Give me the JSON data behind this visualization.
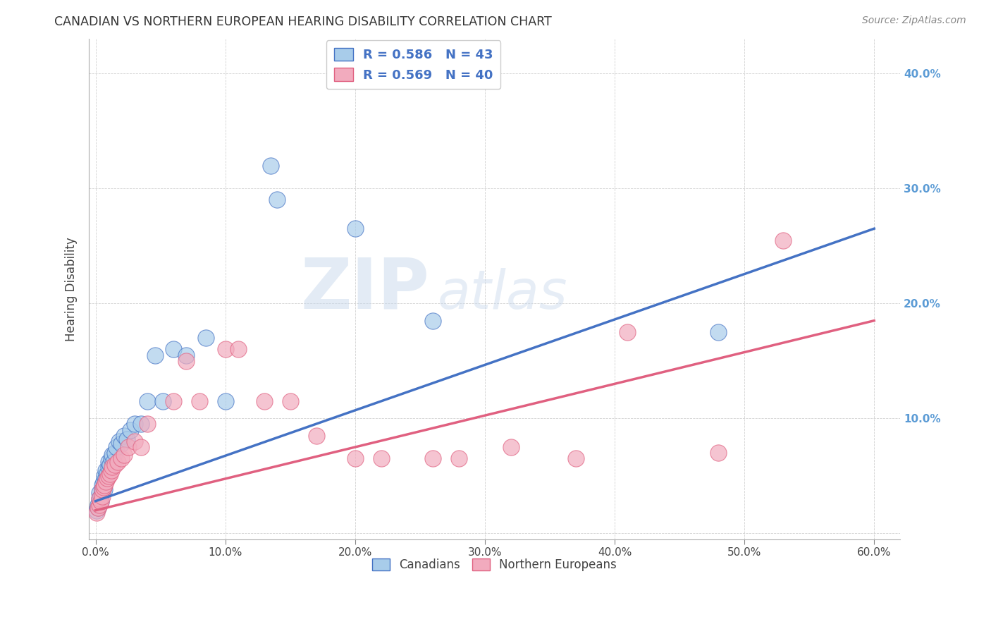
{
  "title": "CANADIAN VS NORTHERN EUROPEAN HEARING DISABILITY CORRELATION CHART",
  "source": "Source: ZipAtlas.com",
  "ylabel": "Hearing Disability",
  "xlim": [
    -0.005,
    0.62
  ],
  "ylim": [
    -0.005,
    0.43
  ],
  "xticks": [
    0.0,
    0.1,
    0.2,
    0.3,
    0.4,
    0.5,
    0.6
  ],
  "yticks": [
    0.0,
    0.1,
    0.2,
    0.3,
    0.4
  ],
  "canadian_R": 0.586,
  "canadian_N": 43,
  "northern_european_R": 0.569,
  "northern_european_N": 40,
  "legend_labels": [
    "Canadians",
    "Northern Europeans"
  ],
  "canadian_color": "#A8CCEA",
  "northern_european_color": "#F2ABBE",
  "canadian_line_color": "#4472C4",
  "northern_european_line_color": "#E06080",
  "background_color": "#FFFFFF",
  "watermark_color": "#C8D8EC",
  "right_tick_color": "#5B9BD5",
  "canadian_x": [
    0.001,
    0.002,
    0.002,
    0.003,
    0.003,
    0.004,
    0.004,
    0.005,
    0.005,
    0.006,
    0.006,
    0.007,
    0.007,
    0.008,
    0.008,
    0.009,
    0.01,
    0.01,
    0.011,
    0.012,
    0.013,
    0.014,
    0.015,
    0.016,
    0.018,
    0.02,
    0.022,
    0.024,
    0.027,
    0.03,
    0.035,
    0.04,
    0.046,
    0.052,
    0.06,
    0.07,
    0.085,
    0.1,
    0.135,
    0.14,
    0.2,
    0.26,
    0.48
  ],
  "canadian_y": [
    0.02,
    0.022,
    0.025,
    0.03,
    0.035,
    0.028,
    0.032,
    0.038,
    0.042,
    0.04,
    0.045,
    0.038,
    0.05,
    0.048,
    0.055,
    0.052,
    0.058,
    0.062,
    0.06,
    0.065,
    0.068,
    0.062,
    0.07,
    0.075,
    0.08,
    0.078,
    0.085,
    0.082,
    0.09,
    0.095,
    0.095,
    0.115,
    0.155,
    0.115,
    0.16,
    0.155,
    0.17,
    0.115,
    0.32,
    0.29,
    0.265,
    0.185,
    0.175
  ],
  "northern_european_x": [
    0.001,
    0.002,
    0.003,
    0.003,
    0.004,
    0.005,
    0.005,
    0.006,
    0.007,
    0.008,
    0.009,
    0.01,
    0.011,
    0.012,
    0.013,
    0.015,
    0.017,
    0.02,
    0.022,
    0.025,
    0.03,
    0.035,
    0.04,
    0.06,
    0.07,
    0.08,
    0.1,
    0.11,
    0.13,
    0.15,
    0.17,
    0.2,
    0.22,
    0.26,
    0.28,
    0.32,
    0.37,
    0.41,
    0.48,
    0.53
  ],
  "northern_european_y": [
    0.018,
    0.022,
    0.025,
    0.03,
    0.028,
    0.032,
    0.038,
    0.04,
    0.042,
    0.045,
    0.048,
    0.05,
    0.052,
    0.055,
    0.058,
    0.06,
    0.062,
    0.065,
    0.068,
    0.075,
    0.08,
    0.075,
    0.095,
    0.115,
    0.15,
    0.115,
    0.16,
    0.16,
    0.115,
    0.115,
    0.085,
    0.065,
    0.065,
    0.065,
    0.065,
    0.075,
    0.065,
    0.175,
    0.07,
    0.255
  ],
  "can_line_x0": 0.0,
  "can_line_x1": 0.6,
  "can_line_y0": 0.028,
  "can_line_y1": 0.265,
  "nor_line_x0": 0.0,
  "nor_line_x1": 0.6,
  "nor_line_y0": 0.02,
  "nor_line_y1": 0.185
}
